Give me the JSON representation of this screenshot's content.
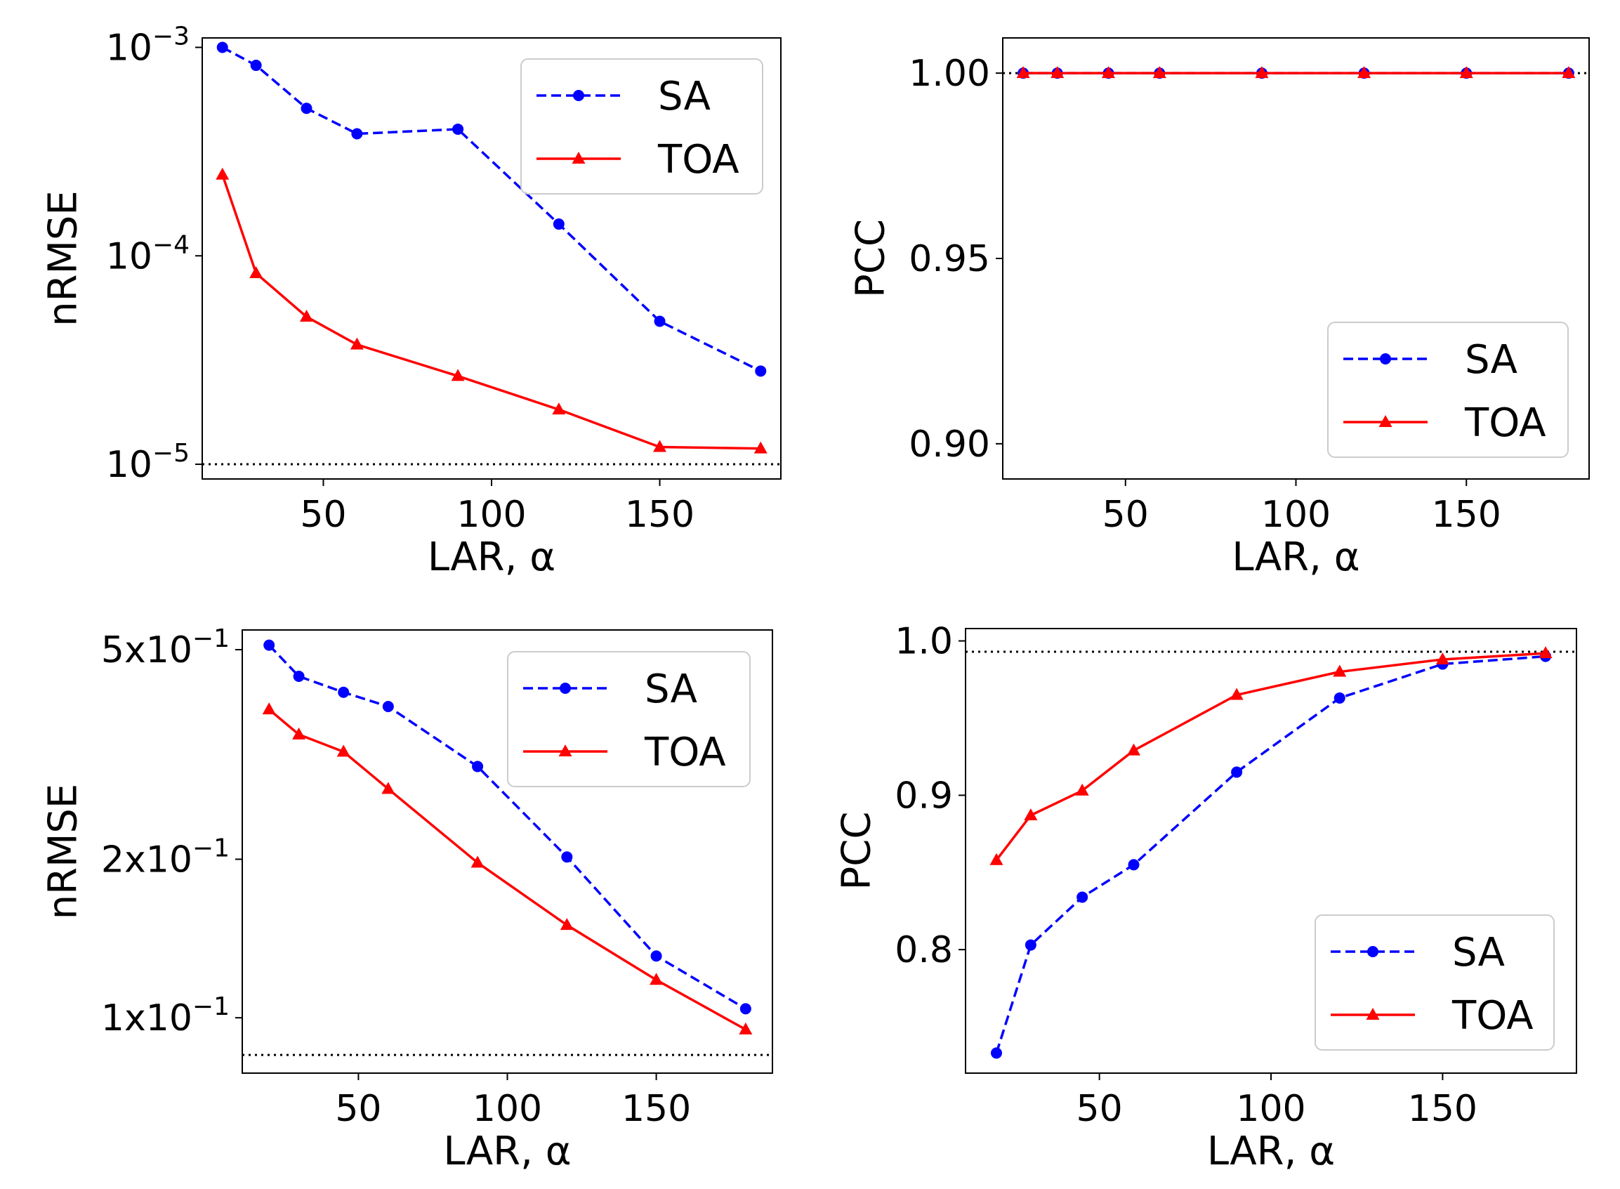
{
  "chart_data": [
    {
      "id": "tl",
      "type": "line",
      "yscale": "log",
      "xlabel": "LAR, α",
      "ylabel": "nRMSE",
      "xlim": [
        14,
        186
      ],
      "ylim": [
        8.5e-06,
        0.00111
      ],
      "xticks": [
        {
          "v": 50,
          "label": "50"
        },
        {
          "v": 100,
          "label": "100"
        },
        {
          "v": 150,
          "label": "150"
        }
      ],
      "yticks": [
        {
          "v": 0.001,
          "base": "10",
          "exp": "−3"
        },
        {
          "v": 0.0001,
          "base": "10",
          "exp": "−4"
        },
        {
          "v": 1e-05,
          "base": "10",
          "exp": "−5"
        }
      ],
      "reference_line": 1e-05,
      "legend_position": "upper-right",
      "x": [
        20,
        30,
        45,
        60,
        90,
        120,
        150,
        180
      ],
      "series": [
        {
          "name": "SA",
          "color": "#0000ff",
          "dash": true,
          "marker": "circle",
          "values": [
            0.001,
            0.00082,
            0.00051,
            0.000385,
            0.000405,
            0.000142,
            4.85e-05,
            2.8e-05
          ]
        },
        {
          "name": "TOA",
          "color": "#ff0000",
          "dash": false,
          "marker": "triangle",
          "values": [
            0.000245,
            8.25e-05,
            5.1e-05,
            3.75e-05,
            2.65e-05,
            1.83e-05,
            1.21e-05,
            1.19e-05
          ]
        }
      ]
    },
    {
      "id": "tr",
      "type": "line",
      "yscale": "linear",
      "xlabel": "LAR, α",
      "ylabel": "PCC",
      "xlim": [
        14,
        186
      ],
      "ylim": [
        0.8905,
        1.0095
      ],
      "xticks": [
        {
          "v": 50,
          "label": "50"
        },
        {
          "v": 100,
          "label": "100"
        },
        {
          "v": 150,
          "label": "150"
        }
      ],
      "yticks": [
        {
          "v": 1.0,
          "label": "1.00"
        },
        {
          "v": 0.95,
          "label": "0.95"
        },
        {
          "v": 0.9,
          "label": "0.90"
        }
      ],
      "reference_line": 1.0,
      "legend_position": "lower-right",
      "x": [
        20,
        30,
        45,
        60,
        90,
        120,
        150,
        180
      ],
      "series": [
        {
          "name": "SA",
          "color": "#0000ff",
          "dash": true,
          "marker": "circle",
          "values": [
            1.0,
            1.0,
            1.0,
            1.0,
            1.0,
            1.0,
            1.0,
            1.0
          ]
        },
        {
          "name": "TOA",
          "color": "#ff0000",
          "dash": false,
          "marker": "triangle",
          "values": [
            1.0,
            1.0,
            1.0,
            1.0,
            1.0,
            1.0,
            1.0,
            1.0
          ]
        }
      ]
    },
    {
      "id": "bl",
      "type": "line",
      "yscale": "log",
      "xlabel": "LAR, α",
      "ylabel": "nRMSE",
      "xlim": [
        11,
        189
      ],
      "ylim": [
        0.0785,
        0.545
      ],
      "xticks": [
        {
          "v": 50,
          "label": "50"
        },
        {
          "v": 100,
          "label": "100"
        },
        {
          "v": 150,
          "label": "150"
        }
      ],
      "yticks": [
        {
          "v": 0.5,
          "base": "5x10",
          "exp": "−1"
        },
        {
          "v": 0.2,
          "base": "2x10",
          "exp": "−1"
        },
        {
          "v": 0.1,
          "base": "1x10",
          "exp": "−1"
        }
      ],
      "reference_line": 0.085,
      "legend_position": "upper-right",
      "x": [
        20,
        30,
        45,
        60,
        90,
        120,
        150,
        180
      ],
      "series": [
        {
          "name": "SA",
          "color": "#0000ff",
          "dash": true,
          "marker": "circle",
          "values": [
            0.51,
            0.445,
            0.415,
            0.39,
            0.3,
            0.202,
            0.131,
            0.104
          ]
        },
        {
          "name": "TOA",
          "color": "#ff0000",
          "dash": false,
          "marker": "triangle",
          "values": [
            0.385,
            0.345,
            0.32,
            0.272,
            0.197,
            0.15,
            0.118,
            0.095
          ]
        }
      ]
    },
    {
      "id": "br",
      "type": "line",
      "yscale": "linear",
      "xlabel": "LAR, α",
      "ylabel": "PCC",
      "xlim": [
        11,
        189
      ],
      "ylim": [
        0.72,
        1.008
      ],
      "xticks": [
        {
          "v": 50,
          "label": "50"
        },
        {
          "v": 100,
          "label": "100"
        },
        {
          "v": 150,
          "label": "150"
        }
      ],
      "yticks": [
        {
          "v": 1.0,
          "label": "1.0"
        },
        {
          "v": 0.9,
          "label": "0.9"
        },
        {
          "v": 0.8,
          "label": "0.8"
        }
      ],
      "reference_line": 0.993,
      "legend_position": "lower-right",
      "x": [
        20,
        30,
        45,
        60,
        90,
        120,
        150,
        180
      ],
      "series": [
        {
          "name": "SA",
          "color": "#0000ff",
          "dash": true,
          "marker": "circle",
          "values": [
            0.733,
            0.803,
            0.834,
            0.855,
            0.915,
            0.963,
            0.985,
            0.99
          ]
        },
        {
          "name": "TOA",
          "color": "#ff0000",
          "dash": false,
          "marker": "triangle",
          "values": [
            0.858,
            0.887,
            0.903,
            0.929,
            0.965,
            0.98,
            0.988,
            0.992
          ]
        }
      ]
    }
  ]
}
